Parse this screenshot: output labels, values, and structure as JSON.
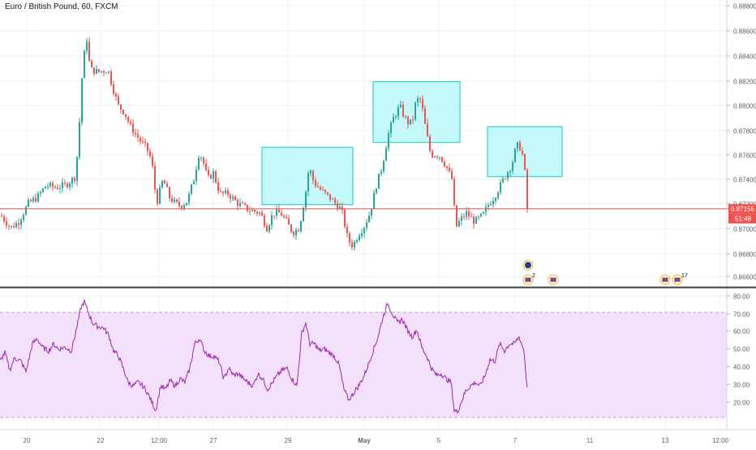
{
  "symbol_title": "Euro / British Pound, 60, FXCM",
  "colors": {
    "up": "#26a69a",
    "down": "#ef5350",
    "box_fill": "#b2f5f5",
    "box_stroke": "#18c6cc",
    "rsi_line": "#9c27b0",
    "rsi_band": "#f3e1fb",
    "price_line": "#ef5350",
    "grid": "#eef0f3",
    "axis_text": "#5d606b"
  },
  "price_label": {
    "value": "0.87155",
    "countdown": "51:48"
  },
  "chart_data": [
    {
      "type": "candlestick",
      "ylim": [
        0.8652,
        0.8887
      ],
      "y_ticks": [
        "0.88800",
        "0.88600",
        "0.88400",
        "0.88200",
        "0.88000",
        "0.87800",
        "0.87600",
        "0.87400",
        "0.87200",
        "0.87000",
        "0.86800",
        "0.86600"
      ],
      "last_price": 0.87155,
      "x_tick_labels": [
        "20",
        "22",
        "12:00",
        "27",
        "29",
        "May",
        "5",
        "7",
        "11",
        "13",
        "12:00"
      ],
      "anchors": [
        [
          0,
          0.871
        ],
        [
          12,
          0.87
        ],
        [
          22,
          0.8705
        ],
        [
          34,
          0.872
        ],
        [
          45,
          0.8725
        ],
        [
          56,
          0.8735
        ],
        [
          68,
          0.8733
        ],
        [
          80,
          0.8735
        ],
        [
          92,
          0.8742
        ],
        [
          96,
          0.8775
        ],
        [
          101,
          0.8835
        ],
        [
          106,
          0.8855
        ],
        [
          110,
          0.883
        ],
        [
          120,
          0.8828
        ],
        [
          132,
          0.883
        ],
        [
          138,
          0.8815
        ],
        [
          145,
          0.88
        ],
        [
          152,
          0.8795
        ],
        [
          160,
          0.8783
        ],
        [
          170,
          0.8773
        ],
        [
          180,
          0.8765
        ],
        [
          186,
          0.8755
        ],
        [
          192,
          0.872
        ],
        [
          200,
          0.874
        ],
        [
          208,
          0.8725
        ],
        [
          215,
          0.872
        ],
        [
          222,
          0.8718
        ],
        [
          230,
          0.8722
        ],
        [
          238,
          0.874
        ],
        [
          244,
          0.876
        ],
        [
          248,
          0.8758
        ],
        [
          255,
          0.874
        ],
        [
          262,
          0.8745
        ],
        [
          270,
          0.8728
        ],
        [
          280,
          0.8728
        ],
        [
          292,
          0.872
        ],
        [
          305,
          0.8715
        ],
        [
          320,
          0.8712
        ],
        [
          328,
          0.87
        ],
        [
          336,
          0.8712
        ],
        [
          345,
          0.8712
        ],
        [
          352,
          0.8705
        ],
        [
          360,
          0.8696
        ],
        [
          368,
          0.87
        ],
        [
          376,
          0.873
        ],
        [
          380,
          0.875
        ],
        [
          386,
          0.8737
        ],
        [
          396,
          0.873
        ],
        [
          405,
          0.8725
        ],
        [
          412,
          0.872
        ],
        [
          420,
          0.8715
        ],
        [
          428,
          0.869
        ],
        [
          434,
          0.8685
        ],
        [
          441,
          0.8695
        ],
        [
          447,
          0.87
        ],
        [
          455,
          0.8712
        ],
        [
          463,
          0.8735
        ],
        [
          470,
          0.875
        ],
        [
          477,
          0.8775
        ],
        [
          484,
          0.879
        ],
        [
          492,
          0.88
        ],
        [
          498,
          0.879
        ],
        [
          504,
          0.8785
        ],
        [
          508,
          0.879
        ],
        [
          512,
          0.8805
        ],
        [
          518,
          0.8805
        ],
        [
          524,
          0.878
        ],
        [
          530,
          0.876
        ],
        [
          540,
          0.876
        ],
        [
          548,
          0.8752
        ],
        [
          556,
          0.874
        ],
        [
          561,
          0.87
        ],
        [
          566,
          0.8706
        ],
        [
          574,
          0.8712
        ],
        [
          584,
          0.8705
        ],
        [
          594,
          0.871
        ],
        [
          602,
          0.872
        ],
        [
          608,
          0.8725
        ],
        [
          616,
          0.8735
        ],
        [
          624,
          0.8745
        ],
        [
          630,
          0.8752
        ],
        [
          636,
          0.8768
        ],
        [
          642,
          0.8765
        ],
        [
          646,
          0.8745
        ],
        [
          649,
          0.87155
        ]
      ]
    },
    {
      "type": "line",
      "name": "RSI",
      "ylim": [
        13,
        93
      ],
      "y_ticks": [
        "80.00",
        "70.00",
        "60.00",
        "50.00",
        "40.00",
        "30.00",
        "20.00"
      ],
      "band": [
        30,
        70
      ],
      "dashed_levels": [
        80,
        20
      ],
      "anchors": [
        [
          0,
          52
        ],
        [
          6,
          57
        ],
        [
          12,
          47
        ],
        [
          18,
          54
        ],
        [
          26,
          52
        ],
        [
          32,
          46
        ],
        [
          40,
          62
        ],
        [
          46,
          65
        ],
        [
          52,
          60
        ],
        [
          60,
          58
        ],
        [
          66,
          62
        ],
        [
          72,
          59
        ],
        [
          80,
          60
        ],
        [
          88,
          58
        ],
        [
          95,
          72
        ],
        [
          100,
          83
        ],
        [
          104,
          86
        ],
        [
          108,
          81
        ],
        [
          114,
          74
        ],
        [
          120,
          72
        ],
        [
          128,
          71
        ],
        [
          134,
          67
        ],
        [
          140,
          58
        ],
        [
          146,
          55
        ],
        [
          152,
          48
        ],
        [
          158,
          40
        ],
        [
          164,
          38
        ],
        [
          170,
          40
        ],
        [
          176,
          38
        ],
        [
          182,
          34
        ],
        [
          188,
          28
        ],
        [
          192,
          24
        ],
        [
          198,
          38
        ],
        [
          204,
          36
        ],
        [
          210,
          41
        ],
        [
          216,
          38
        ],
        [
          222,
          42
        ],
        [
          228,
          40
        ],
        [
          234,
          48
        ],
        [
          240,
          62
        ],
        [
          246,
          65
        ],
        [
          252,
          58
        ],
        [
          258,
          55
        ],
        [
          264,
          55
        ],
        [
          270,
          52
        ],
        [
          276,
          42
        ],
        [
          282,
          48
        ],
        [
          288,
          44
        ],
        [
          294,
          45
        ],
        [
          300,
          42
        ],
        [
          306,
          40
        ],
        [
          312,
          38
        ],
        [
          318,
          45
        ],
        [
          324,
          42
        ],
        [
          330,
          36
        ],
        [
          336,
          40
        ],
        [
          342,
          44
        ],
        [
          348,
          47
        ],
        [
          354,
          48
        ],
        [
          360,
          42
        ],
        [
          366,
          38
        ],
        [
          372,
          68
        ],
        [
          377,
          74
        ],
        [
          382,
          62
        ],
        [
          388,
          62
        ],
        [
          394,
          58
        ],
        [
          400,
          59
        ],
        [
          406,
          57
        ],
        [
          412,
          55
        ],
        [
          418,
          50
        ],
        [
          424,
          36
        ],
        [
          430,
          30
        ],
        [
          436,
          34
        ],
        [
          442,
          38
        ],
        [
          448,
          43
        ],
        [
          454,
          50
        ],
        [
          460,
          58
        ],
        [
          466,
          66
        ],
        [
          472,
          77
        ],
        [
          478,
          85
        ],
        [
          484,
          79
        ],
        [
          490,
          74
        ],
        [
          496,
          76
        ],
        [
          502,
          70
        ],
        [
          508,
          66
        ],
        [
          514,
          70
        ],
        [
          520,
          60
        ],
        [
          526,
          55
        ],
        [
          532,
          48
        ],
        [
          538,
          44
        ],
        [
          544,
          45
        ],
        [
          550,
          42
        ],
        [
          556,
          40
        ],
        [
          560,
          24
        ],
        [
          564,
          23
        ],
        [
          568,
          28
        ],
        [
          574,
          35
        ],
        [
          580,
          38
        ],
        [
          586,
          40
        ],
        [
          592,
          38
        ],
        [
          598,
          44
        ],
        [
          604,
          53
        ],
        [
          610,
          52
        ],
        [
          616,
          62
        ],
        [
          622,
          58
        ],
        [
          628,
          62
        ],
        [
          634,
          62
        ],
        [
          640,
          66
        ],
        [
          646,
          58
        ],
        [
          650,
          36
        ]
      ]
    }
  ],
  "zones": [
    {
      "x_start_candle": 320,
      "x_end_candle": 432,
      "y_top": 0.8766,
      "y_bottom": 0.8719
    },
    {
      "x_start_candle": 457,
      "x_end_candle": 564,
      "y_top": 0.882,
      "y_bottom": 0.877
    },
    {
      "x_start_candle": 598,
      "x_end_candle": 690,
      "y_top": 0.8783,
      "y_bottom": 0.8742
    }
  ],
  "event_markers": [
    {
      "kind": "circle-blue"
    },
    {
      "kind": "flag",
      "count": "2"
    },
    {
      "kind": "flag"
    },
    {
      "kind": "flag"
    },
    {
      "kind": "flag",
      "count": "17"
    }
  ]
}
